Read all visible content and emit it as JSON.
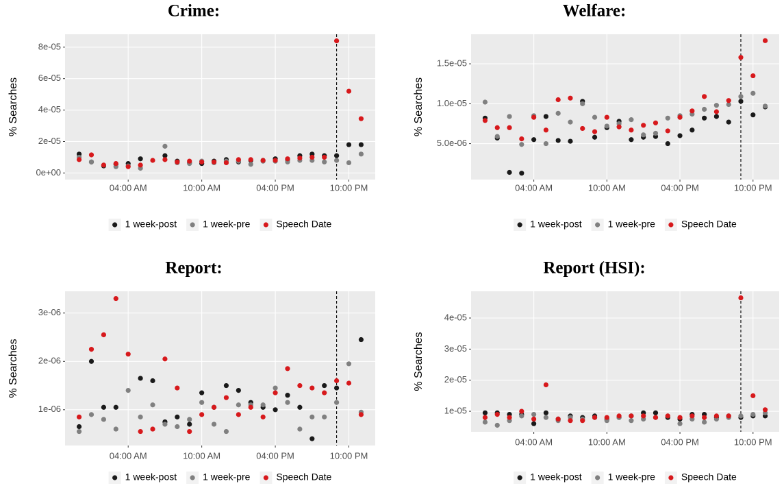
{
  "chart_data": [
    {
      "type": "scatter",
      "title": "Crime:",
      "ylabel": "% Searches",
      "legend": "bottom",
      "grid": true,
      "vline": 21,
      "x": [
        0,
        1,
        2,
        3,
        4,
        5,
        6,
        7,
        8,
        9,
        10,
        11,
        12,
        13,
        14,
        15,
        16,
        17,
        18,
        19,
        20,
        21,
        22,
        23
      ],
      "xlim": [
        -1.15,
        24.15
      ],
      "xticks": [
        {
          "value": 4,
          "label": "04:00 AM"
        },
        {
          "value": 10,
          "label": "10:00 AM"
        },
        {
          "value": 16,
          "label": "04:00 PM"
        },
        {
          "value": 22,
          "label": "10:00 PM"
        }
      ],
      "ylim": [
        -4.2e-06,
        8.82e-05
      ],
      "yticks": [
        {
          "value": 0,
          "label": "0e+00"
        },
        {
          "value": 2e-05,
          "label": "2e-05"
        },
        {
          "value": 4e-05,
          "label": "4e-05"
        },
        {
          "value": 6e-05,
          "label": "6e-05"
        },
        {
          "value": 8e-05,
          "label": "8e-05"
        }
      ],
      "series": [
        {
          "name": "1 week-post",
          "color": "#1a1a1a",
          "values": [
            1.2e-05,
            7e-06,
            4.5e-06,
            5.5e-06,
            6e-06,
            9e-06,
            null,
            1.1e-05,
            7.5e-06,
            6.5e-06,
            6e-06,
            7.5e-06,
            8.5e-06,
            7e-06,
            8e-06,
            8e-06,
            9e-06,
            8.5e-06,
            1.1e-05,
            1.2e-05,
            1.1e-05,
            1.1e-05,
            1.8e-05,
            1.8e-05
          ]
        },
        {
          "name": "1 week-pre",
          "color": "#808080",
          "values": [
            1e-05,
            7e-06,
            5e-06,
            4e-06,
            4.5e-06,
            3e-06,
            null,
            1.7e-05,
            6.5e-06,
            6e-06,
            7.5e-06,
            6.5e-06,
            7.5e-06,
            7.5e-06,
            5.5e-06,
            7.5e-06,
            7.5e-06,
            7e-06,
            8e-06,
            8e-06,
            7e-06,
            8e-06,
            6.5e-06,
            1.2e-05
          ]
        },
        {
          "name": "Speech Date",
          "color": "#d7191c",
          "values": [
            8.5e-06,
            1.15e-05,
            5e-06,
            6e-06,
            4e-06,
            5e-06,
            8e-06,
            8.5e-06,
            7e-06,
            7.5e-06,
            7e-06,
            7e-06,
            6.5e-06,
            8.5e-06,
            8.5e-06,
            8e-06,
            8e-06,
            9e-06,
            9.5e-06,
            1e-05,
            1e-05,
            8.4e-05,
            5.2e-05,
            3.45e-05
          ]
        }
      ]
    },
    {
      "type": "scatter",
      "title": "Welfare:",
      "ylabel": "% Searches",
      "legend": "bottom",
      "grid": true,
      "vline": 21,
      "x": [
        0,
        1,
        2,
        3,
        4,
        5,
        6,
        7,
        8,
        9,
        10,
        11,
        12,
        13,
        14,
        15,
        16,
        17,
        18,
        19,
        20,
        21,
        22,
        23
      ],
      "xlim": [
        -1.15,
        24.15
      ],
      "xticks": [
        {
          "value": 4,
          "label": "04:00 AM"
        },
        {
          "value": 10,
          "label": "10:00 AM"
        },
        {
          "value": 16,
          "label": "04:00 PM"
        },
        {
          "value": 22,
          "label": "10:00 PM"
        }
      ],
      "ylim": [
        5e-07,
        1.87e-05
      ],
      "yticks": [
        {
          "value": 5e-06,
          "label": "5.0e-06"
        },
        {
          "value": 1e-05,
          "label": "1.0e-05"
        },
        {
          "value": 1.5e-05,
          "label": "1.5e-05"
        }
      ],
      "series": [
        {
          "name": "1 week-post",
          "color": "#1a1a1a",
          "values": [
            8.2e-06,
            5.7e-06,
            1.4e-06,
            1.3e-06,
            5.5e-06,
            8.4e-06,
            5.4e-06,
            5.3e-06,
            1.03e-05,
            5.8e-06,
            7e-06,
            7.8e-06,
            5.5e-06,
            5.8e-06,
            5.9e-06,
            5e-06,
            6e-06,
            6.7e-06,
            8.2e-06,
            8.4e-06,
            7.7e-06,
            1.03e-05,
            8.6e-06,
            9.6e-06
          ]
        },
        {
          "name": "1 week-pre",
          "color": "#808080",
          "values": [
            1.02e-05,
            5.9e-06,
            8.4e-06,
            4.9e-06,
            8.5e-06,
            5e-06,
            8.8e-06,
            7.7e-06,
            1e-05,
            8.3e-06,
            7.2e-06,
            7.5e-06,
            8e-06,
            6.1e-06,
            6.3e-06,
            8.2e-06,
            8.5e-06,
            8.7e-06,
            9.3e-06,
            9.8e-06,
            9.9e-06,
            1.09e-05,
            1.13e-05,
            9.7e-06
          ]
        },
        {
          "name": "Speech Date",
          "color": "#d7191c",
          "values": [
            7.9e-06,
            7e-06,
            7e-06,
            5.6e-06,
            8.3e-06,
            6.7e-06,
            1.05e-05,
            1.07e-05,
            6.9e-06,
            6.5e-06,
            8.3e-06,
            7.1e-06,
            6.7e-06,
            7.3e-06,
            7.6e-06,
            6.6e-06,
            8.3e-06,
            9.1e-06,
            1.09e-05,
            9e-06,
            1.04e-05,
            1.58e-05,
            1.35e-05,
            1.79e-05
          ]
        }
      ]
    },
    {
      "type": "scatter",
      "title": "Report:",
      "ylabel": "% Searches",
      "legend": "bottom",
      "grid": true,
      "vline": 21,
      "x": [
        0,
        1,
        2,
        3,
        4,
        5,
        6,
        7,
        8,
        9,
        10,
        11,
        12,
        13,
        14,
        15,
        16,
        17,
        18,
        19,
        20,
        21,
        22,
        23
      ],
      "xlim": [
        -1.15,
        24.15
      ],
      "xticks": [
        {
          "value": 4,
          "label": "04:00 AM"
        },
        {
          "value": 10,
          "label": "10:00 AM"
        },
        {
          "value": 16,
          "label": "04:00 PM"
        },
        {
          "value": 22,
          "label": "10:00 PM"
        }
      ],
      "ylim": [
        2.6e-07,
        3.45e-06
      ],
      "yticks": [
        {
          "value": 1e-06,
          "label": "1e-06"
        },
        {
          "value": 2e-06,
          "label": "2e-06"
        },
        {
          "value": 3e-06,
          "label": "3e-06"
        }
      ],
      "series": [
        {
          "name": "1 week-post",
          "color": "#1a1a1a",
          "values": [
            6.5e-07,
            2e-06,
            1.05e-06,
            1.05e-06,
            null,
            1.65e-06,
            1.6e-06,
            7.5e-07,
            8.5e-07,
            7e-07,
            1.35e-06,
            1.05e-06,
            1.5e-06,
            1.4e-06,
            1.15e-06,
            1.05e-06,
            1e-06,
            1.3e-06,
            1.05e-06,
            4e-07,
            1.5e-06,
            1.45e-06,
            null,
            2.45e-06
          ]
        },
        {
          "name": "1 week-pre",
          "color": "#808080",
          "values": [
            5.5e-07,
            9e-07,
            8e-07,
            6e-07,
            1.4e-06,
            8.5e-07,
            1.1e-06,
            7e-07,
            6.5e-07,
            8e-07,
            1.15e-06,
            7e-07,
            5.5e-07,
            1.1e-06,
            1.1e-06,
            1.1e-06,
            1.45e-06,
            1.15e-06,
            6e-07,
            8.5e-07,
            8.5e-07,
            1.15e-06,
            1.95e-06,
            9.5e-07
          ]
        },
        {
          "name": "Speech Date",
          "color": "#d7191c",
          "values": [
            8.5e-07,
            2.25e-06,
            2.55e-06,
            3.3e-06,
            2.15e-06,
            5.5e-07,
            6e-07,
            2.05e-06,
            1.45e-06,
            5.5e-07,
            9e-07,
            1.05e-06,
            1.25e-06,
            9e-07,
            1.05e-06,
            8.5e-07,
            1.35e-06,
            1.85e-06,
            1.5e-06,
            1.45e-06,
            1.35e-06,
            1.6e-06,
            1.55e-06,
            9e-07
          ]
        }
      ]
    },
    {
      "type": "scatter",
      "title": "Report (HSI):",
      "ylabel": "% Searches",
      "legend": "bottom",
      "grid": true,
      "vline": 21,
      "x": [
        0,
        1,
        2,
        3,
        4,
        5,
        6,
        7,
        8,
        9,
        10,
        11,
        12,
        13,
        14,
        15,
        16,
        17,
        18,
        19,
        20,
        21,
        22,
        23
      ],
      "xlim": [
        -1.15,
        24.15
      ],
      "xticks": [
        {
          "value": 4,
          "label": "04:00 AM"
        },
        {
          "value": 10,
          "label": "10:00 AM"
        },
        {
          "value": 16,
          "label": "04:00 PM"
        },
        {
          "value": 22,
          "label": "10:00 PM"
        }
      ],
      "ylim": [
        3.4e-06,
        4.86e-05
      ],
      "yticks": [
        {
          "value": 1e-05,
          "label": "1e-05"
        },
        {
          "value": 2e-05,
          "label": "2e-05"
        },
        {
          "value": 3e-05,
          "label": "3e-05"
        },
        {
          "value": 4e-05,
          "label": "4e-05"
        }
      ],
      "series": [
        {
          "name": "1 week-post",
          "color": "#1a1a1a",
          "values": [
            9.5e-06,
            9.5e-06,
            9e-06,
            9e-06,
            6e-06,
            9.5e-06,
            7.5e-06,
            8.5e-06,
            8e-06,
            8.5e-06,
            7.5e-06,
            8e-06,
            8.5e-06,
            9.5e-06,
            9.5e-06,
            8e-06,
            7.5e-06,
            9e-06,
            9e-06,
            8e-06,
            8.5e-06,
            8e-06,
            8.5e-06,
            8.5e-06
          ]
        },
        {
          "name": "1 week-pre",
          "color": "#808080",
          "values": [
            6.5e-06,
            5.5e-06,
            7e-06,
            8.5e-06,
            9e-06,
            8e-06,
            7e-06,
            8e-06,
            7.5e-06,
            8e-06,
            7e-06,
            8e-06,
            7e-06,
            7.5e-06,
            8e-06,
            8.5e-06,
            6e-06,
            7.5e-06,
            6.5e-06,
            7.5e-06,
            8e-06,
            8.5e-06,
            9e-06,
            9.5e-06
          ]
        },
        {
          "name": "Speech Date",
          "color": "#d7191c",
          "values": [
            8e-06,
            9e-06,
            8e-06,
            1e-05,
            7.5e-06,
            1.85e-05,
            7.5e-06,
            7e-06,
            7e-06,
            8e-06,
            8e-06,
            8.5e-06,
            8.5e-06,
            8.5e-06,
            8e-06,
            8.5e-06,
            8e-06,
            8.5e-06,
            8e-06,
            8.5e-06,
            8.5e-06,
            4.65e-05,
            1.5e-05,
            1.05e-05
          ]
        }
      ]
    }
  ]
}
